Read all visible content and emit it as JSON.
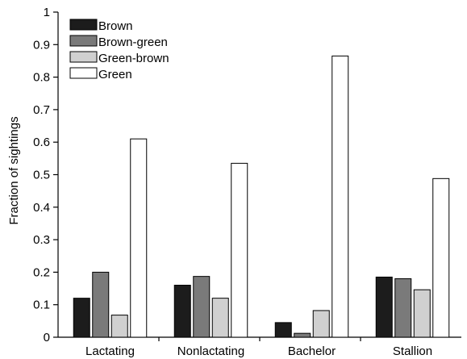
{
  "chart_data": {
    "type": "bar",
    "ylabel": "Fraction of sightings",
    "xlabel": "",
    "ylim": [
      0,
      1
    ],
    "yticks": [
      "0",
      "0.1",
      "0.2",
      "0.3",
      "0.4",
      "0.5",
      "0.6",
      "0.7",
      "0.8",
      "0.9",
      "1"
    ],
    "categories": [
      "Lactating",
      "Nonlactating",
      "Bachelor",
      "Stallion"
    ],
    "series": [
      {
        "name": "Brown",
        "color": "#1c1c1c",
        "values": [
          0.12,
          0.16,
          0.045,
          0.185
        ]
      },
      {
        "name": "Brown-green",
        "color": "#7a7a7a",
        "values": [
          0.2,
          0.187,
          0.012,
          0.18
        ]
      },
      {
        "name": "Green-brown",
        "color": "#d0d0d0",
        "values": [
          0.068,
          0.12,
          0.082,
          0.146
        ]
      },
      {
        "name": "Green",
        "color": "#ffffff",
        "values": [
          0.61,
          0.535,
          0.865,
          0.488
        ]
      }
    ],
    "legend_position": "top-left",
    "grid": false
  }
}
